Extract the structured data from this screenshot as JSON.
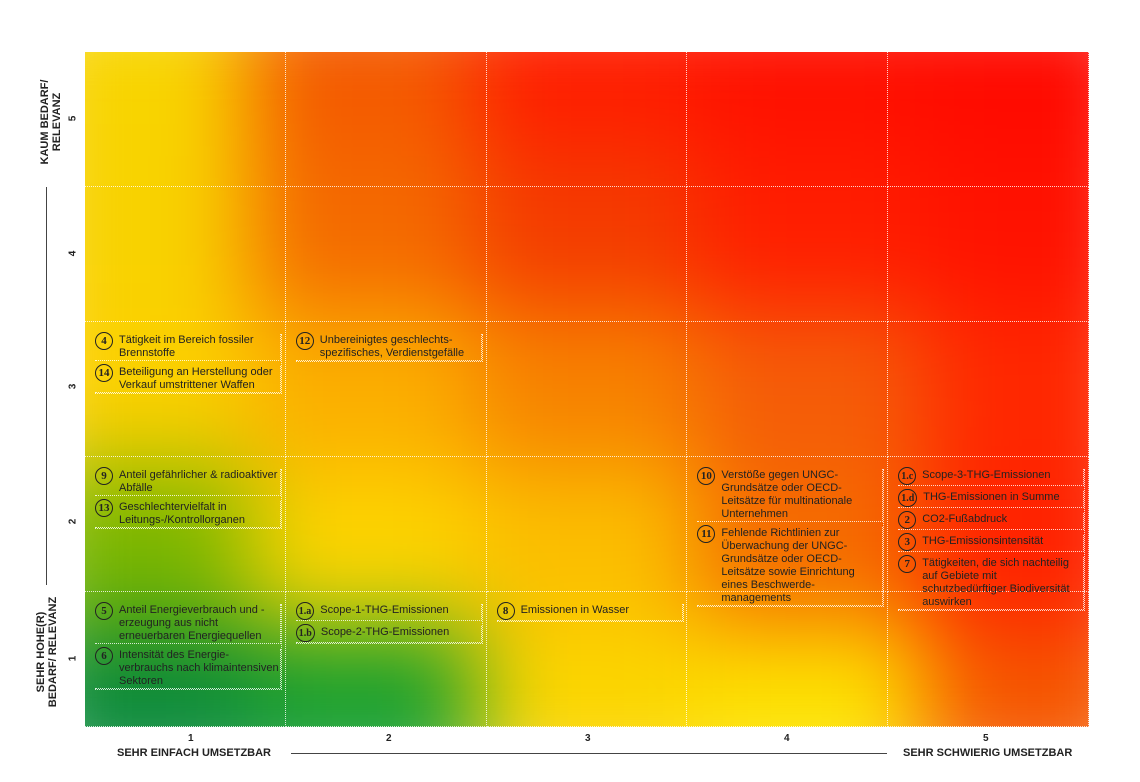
{
  "axes": {
    "x_ticks": [
      "1",
      "2",
      "3",
      "4",
      "5"
    ],
    "y_ticks": [
      "1",
      "2",
      "3",
      "4",
      "5"
    ],
    "x_low": "SEHR EINFACH UMSETZBAR",
    "x_high": "SEHR SCHWIERIG UMSETZBAR",
    "y_high": "KAUM BEDARF/ RELEVANZ",
    "y_low": "SEHR HOHE(R) BEDARF/ RELEVANZ"
  },
  "heat_colors": [
    [
      "#f8d400",
      "#f45a00",
      "#ff1e00",
      "#ff1000",
      "#ff0a00"
    ],
    [
      "#f8d200",
      "#f46a00",
      "#f43c00",
      "#ff1e00",
      "#ff1200"
    ],
    [
      "#fbd000",
      "#fbae00",
      "#f78200",
      "#f55c08",
      "#ff2800"
    ],
    [
      "#7ab600",
      "#fcd400",
      "#fbbe00",
      "#f56c00",
      "#ff2200"
    ],
    [
      "#0a8a3a",
      "#18a030",
      "#fbd600",
      "#fde200",
      "#f55800"
    ]
  ],
  "items": [
    {
      "num": "4",
      "label": "Tätigkeit im Bereich fossiler Brennstoffe",
      "x": 1,
      "y": 3
    },
    {
      "num": "14",
      "label": "Beteiligung an Herstellung oder Verkauf umstrittener Waffen",
      "x": 1,
      "y": 3
    },
    {
      "num": "12",
      "label": "Unbereinigtes geschlechts-spezifisches, Verdienstgefälle",
      "x": 2,
      "y": 3
    },
    {
      "num": "9",
      "label": "Anteil gefährlicher & radioaktiver Abfälle",
      "x": 1,
      "y": 2
    },
    {
      "num": "13",
      "label": "Geschlechtervielfalt in Leitungs-/Kontrollorganen",
      "x": 1,
      "y": 2
    },
    {
      "num": "10",
      "label": "Verstöße gegen UNGC-Grundsätze oder OECD-Leitsätze für multinationale Unternehmen",
      "x": 4,
      "y": 2
    },
    {
      "num": "11",
      "label": "Fehlende Richtlinien zur Überwachung der UNGC-Grundsätze oder OECD-Leitsätze sowie Einrichtung eines Beschwerde-managements",
      "x": 4,
      "y": 2
    },
    {
      "num": "1.c",
      "label": "Scope-3-THG-Emissionen",
      "x": 5,
      "y": 2
    },
    {
      "num": "1.d",
      "label": "THG-Emissionen in Summe",
      "x": 5,
      "y": 2
    },
    {
      "num": "2",
      "label": "CO2-Fußabdruck",
      "x": 5,
      "y": 2
    },
    {
      "num": "3",
      "label": "THG-Emissionsintensität",
      "x": 5,
      "y": 2
    },
    {
      "num": "7",
      "label": "Tätigkeiten, die sich nachteilig auf Gebiete mit schutzbedürftiger Biodiversität auswirken",
      "x": 5,
      "y": 2
    },
    {
      "num": "5",
      "label": "Anteil Energieverbrauch und -erzeugung aus nicht erneuerbaren Energiequellen",
      "x": 1,
      "y": 1
    },
    {
      "num": "6",
      "label": "Intensität des Energie-verbrauchs nach klimaintensiven Sektoren",
      "x": 1,
      "y": 1
    },
    {
      "num": "1.a",
      "label": "Scope-1-THG-Emissionen",
      "x": 2,
      "y": 1
    },
    {
      "num": "1.b",
      "label": "Scope-2-THG-Emissionen",
      "x": 2,
      "y": 1
    },
    {
      "num": "8",
      "label": "Emissionen in Wasser",
      "x": 3,
      "y": 1
    }
  ]
}
